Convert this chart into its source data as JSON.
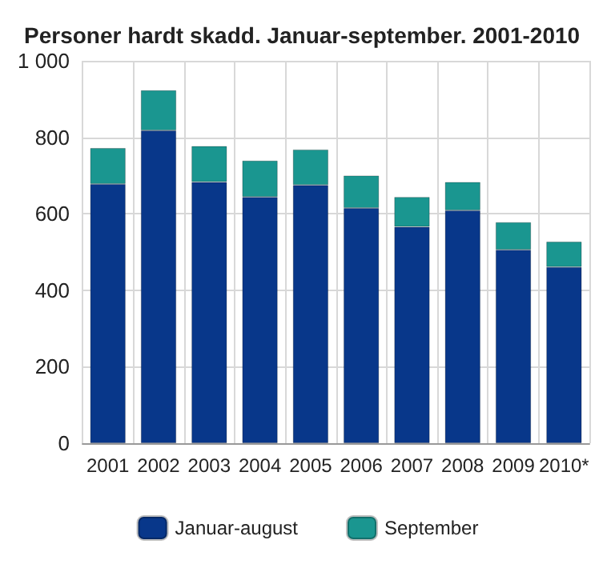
{
  "chart_data": {
    "type": "bar",
    "title": "Personer hardt skadd. Januar-september. 2001-2010",
    "categories": [
      "2001",
      "2002",
      "2003",
      "2004",
      "2005",
      "2006",
      "2007",
      "2008",
      "2009",
      "2010*"
    ],
    "series": [
      {
        "name": "Januar-august",
        "color": "#08378a",
        "values": [
          678,
          818,
          683,
          644,
          675,
          615,
          566,
          609,
          506,
          461
        ]
      },
      {
        "name": "September",
        "color": "#1a9690",
        "values": [
          94,
          105,
          94,
          95,
          93,
          85,
          78,
          74,
          72,
          66
        ]
      }
    ],
    "stacked": true,
    "ylim": [
      0,
      1000
    ],
    "yticks": [
      0,
      200,
      400,
      600,
      800,
      {
        "value": 1000,
        "label": "1 000"
      }
    ],
    "grid": true,
    "legend": "bottom"
  }
}
